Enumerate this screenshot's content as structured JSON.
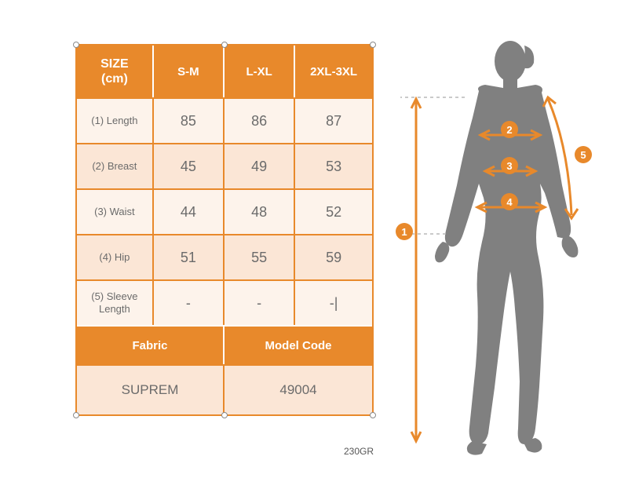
{
  "table": {
    "header": {
      "size_label_line1": "SIZE",
      "size_label_line2": "(cm)",
      "cols": [
        "S-M",
        "L-XL",
        "2XL-3XL"
      ]
    },
    "rows": [
      {
        "label": "(1) Length",
        "values": [
          "85",
          "86",
          "87"
        ],
        "alt": false
      },
      {
        "label": "(2) Breast",
        "values": [
          "45",
          "49",
          "53"
        ],
        "alt": true
      },
      {
        "label": "(3) Waist",
        "values": [
          "44",
          "48",
          "52"
        ],
        "alt": false
      },
      {
        "label": "(4) Hip",
        "values": [
          "51",
          "55",
          "59"
        ],
        "alt": true
      },
      {
        "label": "(5) Sleeve Length",
        "values": [
          "-",
          "-",
          "-|"
        ],
        "alt": false
      }
    ],
    "footer_headers": {
      "fabric": "Fabric",
      "model_code": "Model Code"
    },
    "footer_values": {
      "fabric": "SUPREM",
      "model_code": "49004"
    }
  },
  "caption": "230GR",
  "colors": {
    "accent": "#e8892b",
    "light": "#fdf3eb",
    "mid": "#fbe6d6",
    "text": "#6b6b6b",
    "silhouette": "#808080"
  },
  "diagram": {
    "badges": [
      "1",
      "2",
      "3",
      "4",
      "5"
    ]
  }
}
